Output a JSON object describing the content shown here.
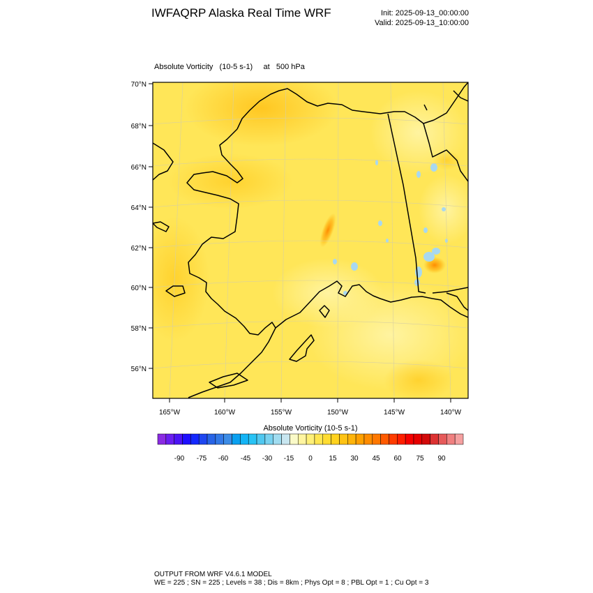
{
  "header": {
    "title": "IWFAQRP Alaska Real Time WRF",
    "init": "Init: 2025-09-13_00:00:00",
    "valid": "Valid: 2025-09-13_10:00:00"
  },
  "plot": {
    "subtitle": "Absolute Vorticity   (10-5 s-1)     at   500 hPa",
    "lat_labels": [
      "70°N",
      "68°N",
      "66°N",
      "64°N",
      "62°N",
      "60°N",
      "58°N",
      "56°N"
    ],
    "lon_labels": [
      "165°W",
      "160°W",
      "155°W",
      "150°W",
      "145°W",
      "140°W"
    ]
  },
  "colorbar": {
    "title": "Absolute Vorticity  (10-5 s-1)",
    "tick_labels": [
      "-90",
      "-75",
      "-60",
      "-45",
      "-30",
      "-15",
      "0",
      "15",
      "30",
      "45",
      "60",
      "75",
      "90"
    ],
    "colors": [
      "#8a2be2",
      "#6a1ef0",
      "#4b14f5",
      "#1e0fff",
      "#1428ff",
      "#1e46f0",
      "#2864e6",
      "#3278e6",
      "#3c8ce6",
      "#0aa0f0",
      "#14b4f5",
      "#28c3f5",
      "#50c8f0",
      "#78d2f0",
      "#a0dcf0",
      "#c8e6f0",
      "#fafac8",
      "#fff5a0",
      "#fff078",
      "#ffe650",
      "#ffdc32",
      "#ffd21e",
      "#ffc314",
      "#ffb40a",
      "#ffa000",
      "#ff8c00",
      "#ff7800",
      "#ff5a00",
      "#ff3c00",
      "#ff1e00",
      "#f50000",
      "#e60000",
      "#d20a0a",
      "#dc3232",
      "#e65a5a",
      "#f08080",
      "#f5a0a0"
    ]
  },
  "map": {
    "background_color": "#ffe658"
  },
  "footer": {
    "line1": "OUTPUT FROM WRF V4.6.1 MODEL",
    "line2": "WE = 225 ; SN = 225 ; Levels = 38 ; Dis = 8km ; Phys Opt = 8 ; PBL Opt = 1 ; Cu Opt = 3"
  }
}
